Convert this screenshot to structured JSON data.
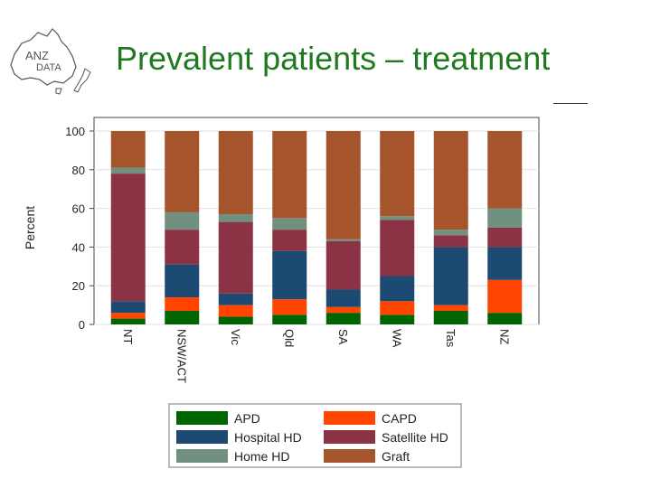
{
  "slide": {
    "title": "Prevalent patients – treatment",
    "logo_text_1": "ANZ",
    "logo_text_2": "DATA"
  },
  "colors": {
    "APD": "#006400",
    "CAPD": "#ff4500",
    "Hospital HD": "#1c4a72",
    "Satellite HD": "#8b3344",
    "Home HD": "#72907f",
    "Graft": "#a6542b",
    "title": "#1f7a1f"
  },
  "chart_data": {
    "type": "bar",
    "stacked": true,
    "title": "",
    "xlabel": "",
    "ylabel": "Percent",
    "ylim": [
      0,
      100
    ],
    "yticks": [
      0,
      20,
      40,
      60,
      80,
      100
    ],
    "grid": true,
    "legend_position": "bottom",
    "categories": [
      "NT",
      "NSW/ACT",
      "Vic",
      "Qld",
      "SA",
      "WA",
      "Tas",
      "NZ"
    ],
    "series": [
      {
        "name": "APD",
        "values": [
          3,
          7,
          4,
          5,
          6,
          5,
          7,
          6
        ]
      },
      {
        "name": "CAPD",
        "values": [
          3,
          7,
          6,
          8,
          3,
          7,
          3,
          17
        ]
      },
      {
        "name": "Hospital HD",
        "values": [
          6,
          17,
          6,
          25,
          9,
          13,
          30,
          17
        ]
      },
      {
        "name": "Satellite HD",
        "values": [
          66,
          18,
          37,
          11,
          25,
          29,
          6,
          10
        ]
      },
      {
        "name": "Home HD",
        "values": [
          3,
          9,
          4,
          6,
          1,
          2,
          3,
          10
        ]
      },
      {
        "name": "Graft",
        "values": [
          19,
          42,
          43,
          45,
          56,
          44,
          51,
          40
        ]
      }
    ],
    "legend_order": [
      "APD",
      "CAPD",
      "Hospital HD",
      "Satellite HD",
      "Home HD",
      "Graft"
    ]
  }
}
